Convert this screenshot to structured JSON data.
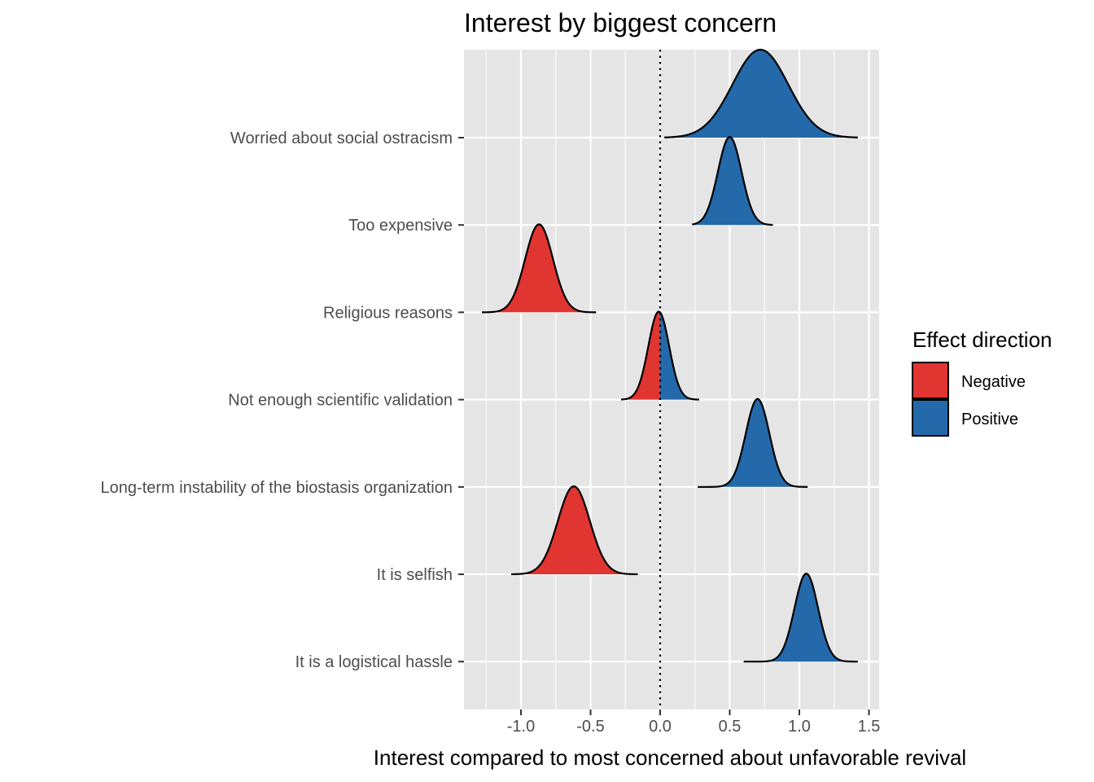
{
  "chart_data": {
    "type": "ridgeline",
    "title": "Interest by biggest concern",
    "xlabel": "Interest compared to most concerned about unfavorable revival",
    "ylabel": "",
    "xlim": [
      -1.42,
      1.55
    ],
    "x_ticks": [
      -1.0,
      -0.5,
      0.0,
      0.5,
      1.0,
      1.5
    ],
    "x_tick_labels": [
      "-1.0",
      "-0.5",
      "0.0",
      "0.5",
      "1.0",
      "1.5"
    ],
    "reference_line": {
      "x": 0.0,
      "style": "dotted"
    },
    "grid": true,
    "categories": [
      "Worried about social ostracism",
      "Too expensive",
      "Religious reasons",
      "Not enough scientific validation",
      "Long-term instability of the biostasis organization",
      "It is selfish",
      "It is a logistical hassle"
    ],
    "series": [
      {
        "category": "Worried about social ostracism",
        "mean": 0.72,
        "sd": 0.2,
        "min": 0.03,
        "max": 1.42,
        "direction": "Positive"
      },
      {
        "category": "Too expensive",
        "mean": 0.5,
        "sd": 0.085,
        "min": 0.23,
        "max": 0.81,
        "direction": "Positive"
      },
      {
        "category": "Religious reasons",
        "mean": -0.87,
        "sd": 0.1,
        "min": -1.28,
        "max": -0.46,
        "direction": "Negative"
      },
      {
        "category": "Not enough scientific validation",
        "mean": -0.01,
        "sd": 0.075,
        "min": -0.28,
        "max": 0.28,
        "direction": "Both"
      },
      {
        "category": "Long-term instability of the biostasis organization",
        "mean": 0.7,
        "sd": 0.085,
        "min": 0.27,
        "max": 1.06,
        "direction": "Positive"
      },
      {
        "category": "It is selfish",
        "mean": -0.62,
        "sd": 0.115,
        "min": -1.07,
        "max": -0.16,
        "direction": "Negative"
      },
      {
        "category": "It is a logistical hassle",
        "mean": 1.05,
        "sd": 0.085,
        "min": 0.6,
        "max": 1.42,
        "direction": "Positive"
      }
    ],
    "legend": {
      "title": "Effect direction",
      "position": "right",
      "entries": [
        {
          "label": "Negative",
          "color": "#e03530"
        },
        {
          "label": "Positive",
          "color": "#2469aa"
        }
      ]
    },
    "colors": {
      "panel": "#e5e5e5",
      "grid": "#ffffff",
      "negative": "#e03530",
      "positive": "#2469aa",
      "outline": "#000000"
    }
  }
}
